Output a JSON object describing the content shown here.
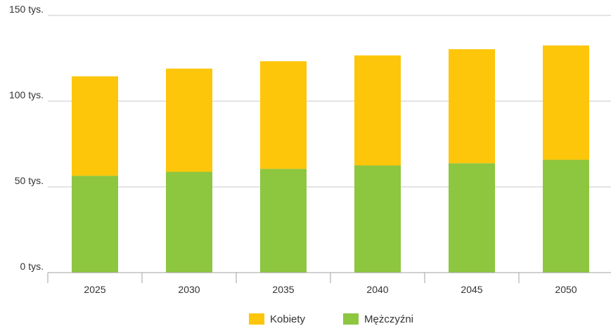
{
  "chart_data": {
    "type": "bar",
    "stacked": true,
    "categories": [
      "2025",
      "2030",
      "2035",
      "2040",
      "2045",
      "2050"
    ],
    "series": [
      {
        "name": "Mężczyźni",
        "color": "#8dc63f",
        "values": [
          56500,
          58800,
          60500,
          62500,
          63800,
          65800
        ]
      },
      {
        "name": "Kobiety",
        "color": "#fdc60a",
        "values": [
          58000,
          60200,
          62800,
          64200,
          66500,
          66700
        ]
      }
    ],
    "yticks": [
      {
        "value": 0,
        "label": "0 tys."
      },
      {
        "value": 50000,
        "label": "50 tys."
      },
      {
        "value": 100000,
        "label": "100 tys."
      },
      {
        "value": 150000,
        "label": "150 tys."
      }
    ],
    "ylim": [
      0,
      150000
    ],
    "title": "",
    "xlabel": "",
    "ylabel": "",
    "grid": true,
    "legend": {
      "placement": "bottom-center",
      "items": [
        {
          "label": "Kobiety",
          "color": "#fdc60a"
        },
        {
          "label": "Mężczyźni",
          "color": "#8dc63f"
        }
      ]
    }
  }
}
